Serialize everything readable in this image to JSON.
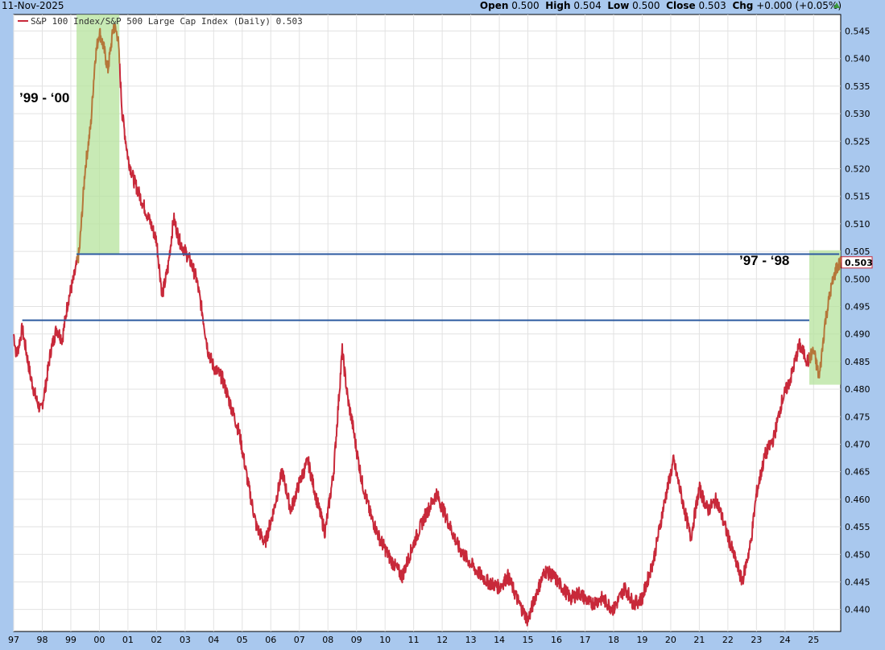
{
  "header": {
    "date": "11-Nov-2025",
    "open_label": "Open",
    "open_value": "0.500",
    "high_label": "High",
    "high_value": "0.504",
    "low_label": "Low",
    "low_value": "0.500",
    "close_label": "Close",
    "close_value": "0.503",
    "chg_label": "Chg",
    "chg_value": "+0.000 (+0.05%)",
    "chg_direction_icon": "up-triangle"
  },
  "colors": {
    "background": "#a9c8ee",
    "plot_background": "#ffffff",
    "series_line": "#c8293a",
    "highlight_line": "#b5773a",
    "shade": "#b6e39c",
    "horizontal_lines": "#2c5aa0"
  },
  "chart_data": {
    "type": "line",
    "legend": "S&P 100 Index/S&P 500 Large Cap Index (Daily) 0.503",
    "last_value_label": "0.503",
    "x_ticks": [
      "97",
      "98",
      "99",
      "00",
      "01",
      "02",
      "03",
      "04",
      "05",
      "06",
      "07",
      "08",
      "09",
      "10",
      "11",
      "12",
      "13",
      "14",
      "15",
      "16",
      "17",
      "18",
      "19",
      "20",
      "21",
      "22",
      "23",
      "24",
      "25"
    ],
    "y_ticks": [
      "0.440",
      "0.445",
      "0.450",
      "0.455",
      "0.460",
      "0.465",
      "0.470",
      "0.475",
      "0.480",
      "0.485",
      "0.490",
      "0.495",
      "0.500",
      "0.505",
      "0.510",
      "0.515",
      "0.520",
      "0.525",
      "0.530",
      "0.535",
      "0.540",
      "0.545"
    ],
    "ylim": [
      0.436,
      0.548
    ],
    "xlim": [
      1997.0,
      2025.95
    ],
    "grid": true,
    "series": [
      {
        "x": [
          1997.0,
          1997.1,
          1997.3,
          1997.4,
          1997.6,
          1997.8,
          1997.95,
          1998.1,
          1998.3,
          1998.5,
          1998.7,
          1998.9,
          1999.1,
          1999.3,
          1999.5,
          1999.7,
          1999.85,
          2000.0,
          2000.15,
          2000.3,
          2000.5,
          2000.65,
          2000.8,
          2001.0,
          2001.2,
          2001.5,
          2001.8,
          2002.0,
          2002.2,
          2002.4,
          2002.6,
          2002.8,
          2003.0,
          2003.2,
          2003.4,
          2003.6,
          2003.8,
          2004.0,
          2004.3,
          2004.6,
          2004.9,
          2005.2,
          2005.5,
          2005.8,
          2006.1,
          2006.4,
          2006.7,
          2007.0,
          2007.3,
          2007.6,
          2007.9,
          2008.2,
          2008.5,
          2008.7,
          2008.85,
          2009.0,
          2009.2,
          2009.5,
          2009.8,
          2010.2,
          2010.6,
          2011.0,
          2011.4,
          2011.8,
          2012.2,
          2012.6,
          2012.9,
          2013.2,
          2013.6,
          2014.0,
          2014.3,
          2014.7,
          2015.0,
          2015.3,
          2015.6,
          2015.9,
          2016.2,
          2016.5,
          2016.8,
          2017.2,
          2017.6,
          2018.0,
          2018.4,
          2018.7,
          2019.0,
          2019.4,
          2019.8,
          2020.1,
          2020.4,
          2020.7,
          2021.0,
          2021.3,
          2021.6,
          2021.9,
          2022.2,
          2022.5,
          2022.8,
          2023.0,
          2023.3,
          2023.6,
          2023.9,
          2024.2,
          2024.5,
          2024.8,
          2025.0,
          2025.2,
          2025.4,
          2025.6,
          2025.8,
          2025.95
        ],
        "y": [
          0.49,
          0.486,
          0.491,
          0.488,
          0.482,
          0.478,
          0.476,
          0.48,
          0.487,
          0.491,
          0.489,
          0.496,
          0.5,
          0.505,
          0.52,
          0.528,
          0.54,
          0.545,
          0.542,
          0.538,
          0.546,
          0.544,
          0.53,
          0.522,
          0.518,
          0.514,
          0.51,
          0.507,
          0.497,
          0.502,
          0.511,
          0.507,
          0.505,
          0.503,
          0.5,
          0.494,
          0.487,
          0.484,
          0.482,
          0.477,
          0.472,
          0.463,
          0.455,
          0.452,
          0.458,
          0.465,
          0.458,
          0.463,
          0.467,
          0.46,
          0.454,
          0.465,
          0.487,
          0.478,
          0.474,
          0.469,
          0.463,
          0.457,
          0.453,
          0.449,
          0.446,
          0.452,
          0.457,
          0.461,
          0.456,
          0.451,
          0.449,
          0.447,
          0.445,
          0.444,
          0.446,
          0.441,
          0.438,
          0.443,
          0.447,
          0.446,
          0.444,
          0.442,
          0.443,
          0.441,
          0.442,
          0.44,
          0.444,
          0.441,
          0.442,
          0.449,
          0.46,
          0.467,
          0.46,
          0.453,
          0.462,
          0.458,
          0.46,
          0.455,
          0.45,
          0.445,
          0.452,
          0.461,
          0.468,
          0.471,
          0.478,
          0.482,
          0.488,
          0.485,
          0.487,
          0.482,
          0.492,
          0.498,
          0.502,
          0.503
        ]
      }
    ],
    "highlights": [
      {
        "x0": 1999.2,
        "x1": 2000.7,
        "y0": 0.5045,
        "y1": 0.548,
        "label": "’99 - ‘00"
      },
      {
        "x0": 2024.85,
        "x1": 2025.95,
        "y0": 0.4808,
        "y1": 0.5052,
        "label": "’97 - ‘98"
      }
    ],
    "hlines": [
      {
        "y": 0.5045,
        "x0": 1999.2,
        "x1": 2025.9
      },
      {
        "y": 0.4925,
        "x0": 1997.3,
        "x1": 2024.85
      }
    ]
  }
}
